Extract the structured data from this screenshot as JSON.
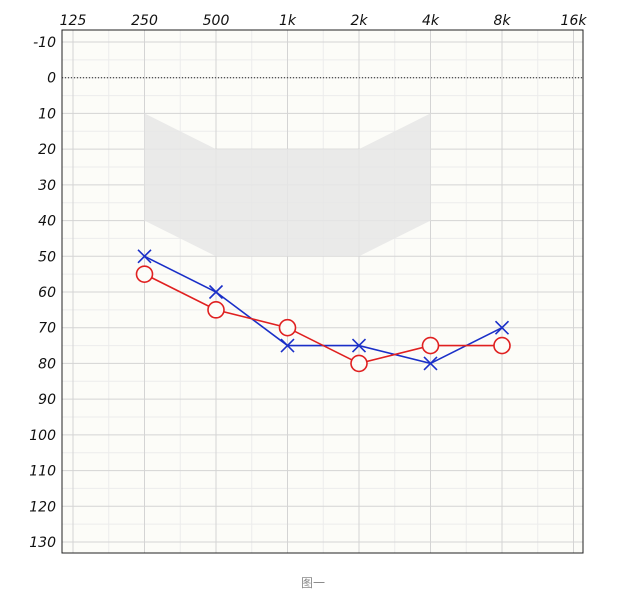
{
  "chart_data": {
    "type": "line",
    "x_ticks": [
      "125",
      "250",
      "500",
      "1k",
      "2k",
      "4k",
      "8k",
      "16k"
    ],
    "x_scale": "log2",
    "y_ticks": [
      -10,
      0,
      10,
      20,
      30,
      40,
      50,
      60,
      70,
      80,
      90,
      100,
      110,
      120,
      130
    ],
    "ylim": [
      -10,
      130
    ],
    "y_inverted": true,
    "reference_line_y": 0,
    "grid": true,
    "shaded_region": [
      {
        "x": "250",
        "y": 10
      },
      {
        "x": "500",
        "y": 20
      },
      {
        "x": "2k",
        "y": 20
      },
      {
        "x": "4k",
        "y": 10
      },
      {
        "x": "4k",
        "y": 40
      },
      {
        "x": "2k",
        "y": 50
      },
      {
        "x": "500",
        "y": 50
      },
      {
        "x": "250",
        "y": 40
      }
    ],
    "series": [
      {
        "marker": "x",
        "color": "#1a2fc8",
        "x": [
          "250",
          "500",
          "1k",
          "2k",
          "4k",
          "8k"
        ],
        "values": [
          50,
          60,
          75,
          75,
          80,
          70
        ]
      },
      {
        "marker": "circle",
        "color": "#e02020",
        "x": [
          "250",
          "500",
          "1k",
          "2k",
          "4k",
          "8k"
        ],
        "values": [
          55,
          65,
          70,
          80,
          75,
          75
        ]
      }
    ]
  },
  "caption": "图一"
}
